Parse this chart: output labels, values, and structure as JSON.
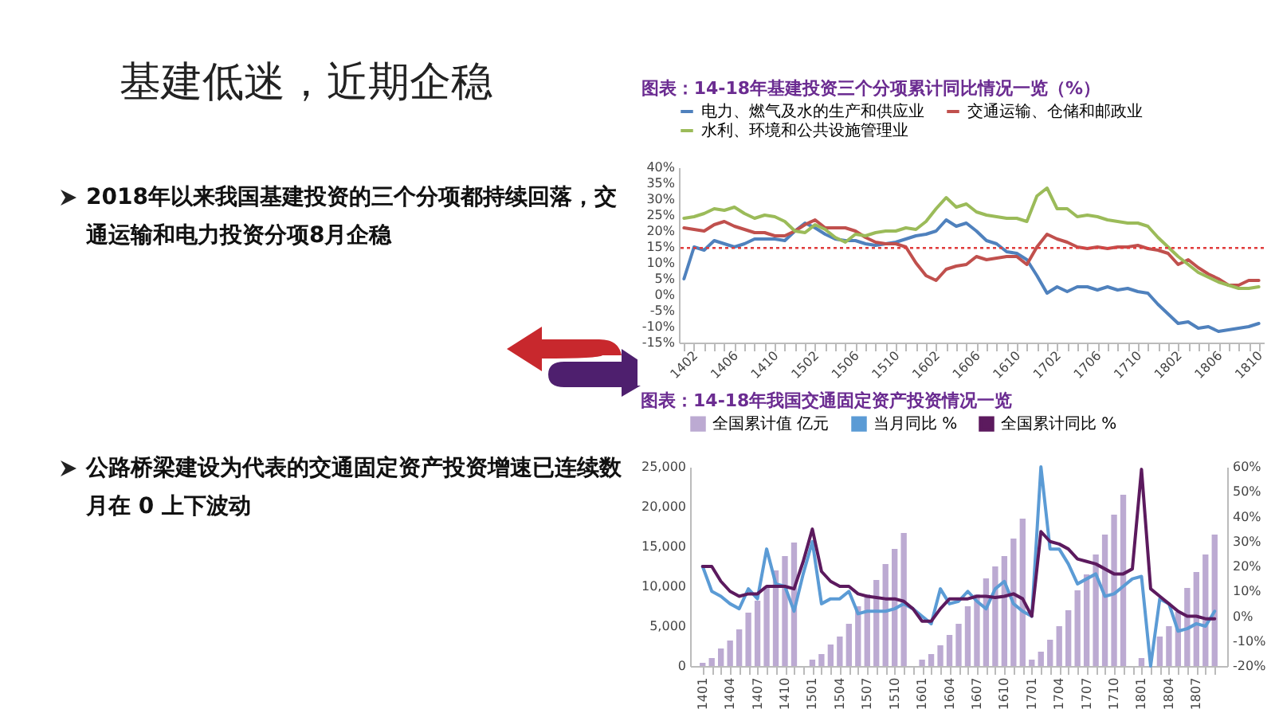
{
  "chart_data": [
    {
      "type": "other",
      "title": "基建低迷，近期企稳",
      "annotations": [
        "2018年以来我国基建投资的三个分项都持续回落，交通运输和电力投资分项8月企稳",
        "公路桥梁建设为代表的交通固定资产投资增速已连续数月在 0 上下波动"
      ]
    },
    {
      "type": "line",
      "title": "图表：14-18年基建投资三个分项累计同比情况一览（%）",
      "legend": "top",
      "categories": [
        "1402",
        null,
        null,
        null,
        "1406",
        null,
        null,
        null,
        "1410",
        null,
        null,
        null,
        "1502",
        null,
        null,
        null,
        "1506",
        null,
        null,
        null,
        "1510",
        null,
        null,
        null,
        "1602",
        null,
        null,
        null,
        "1606",
        null,
        null,
        null,
        "1610",
        null,
        null,
        null,
        "1702",
        null,
        null,
        null,
        "1706",
        null,
        null,
        null,
        "1710",
        null,
        null,
        null,
        "1802",
        null,
        null,
        null,
        "1806",
        null,
        null,
        null,
        "1810",
        null
      ],
      "ylim": [
        -15,
        40
      ],
      "yticks": [
        {
          "value": -15,
          "label": "-15%"
        },
        {
          "value": -10,
          "label": "-10%"
        },
        {
          "value": -5,
          "label": "-5%"
        },
        {
          "value": 0,
          "label": "0%"
        },
        {
          "value": 5,
          "label": "5%"
        },
        {
          "value": 10,
          "label": "10%"
        },
        {
          "value": 15,
          "label": "15%"
        },
        {
          "value": 20,
          "label": "20%"
        },
        {
          "value": 25,
          "label": "25%"
        },
        {
          "value": 30,
          "label": "30%"
        },
        {
          "value": 35,
          "label": "35%"
        },
        {
          "value": 40,
          "label": "40%"
        }
      ],
      "ref_lines": [
        {
          "axis": "y",
          "value": 14.7,
          "color": "#e03c3c",
          "line_style": "dotted"
        }
      ],
      "series": [
        {
          "name": "电力、燃气及水的生产和供应业",
          "color": "#4f81bd",
          "values": [
            5,
            15,
            14,
            17,
            16,
            15,
            16,
            17.5,
            17.5,
            17.5,
            17,
            20,
            22.5,
            21,
            19,
            17.5,
            17,
            17,
            16,
            15.5,
            16,
            16.5,
            17.5,
            18.5,
            19,
            20,
            23.5,
            21.5,
            22.5,
            20,
            17,
            16,
            13.5,
            13,
            11,
            6,
            0.5,
            2.5,
            1,
            2.5,
            2.5,
            1.5,
            2.5,
            1.5,
            2,
            1,
            0.5,
            -3,
            -6,
            -9,
            -8.5,
            -10.5,
            -10,
            -11.5,
            -11,
            -10.5,
            -10,
            -9
          ]
        },
        {
          "name": "交通运输、仓储和邮政业",
          "color": "#c0504d",
          "values": [
            21,
            20.5,
            20,
            22,
            23,
            21.5,
            20.5,
            19.5,
            19.5,
            18.5,
            18.5,
            20,
            22,
            23.5,
            21,
            21,
            21,
            20,
            18,
            16.5,
            16,
            16,
            15,
            10,
            6,
            4.5,
            8,
            9,
            9.5,
            12,
            11,
            11.5,
            12,
            12,
            9.5,
            15,
            19,
            17.5,
            16.5,
            15,
            14.5,
            15,
            14.5,
            15,
            15,
            15.5,
            14.5,
            14,
            13,
            9.5,
            11,
            8.5,
            6.5,
            5,
            3,
            3,
            4.5,
            4.5
          ]
        },
        {
          "name": "水利、环境和公共设施管理业",
          "color": "#9bbb59",
          "values": [
            24,
            24.5,
            25.5,
            27,
            26.5,
            27.5,
            25.5,
            24,
            25,
            24.5,
            23,
            20,
            19.5,
            22,
            20.5,
            18,
            16.5,
            19,
            18.5,
            19.5,
            20,
            20,
            21,
            20.5,
            23,
            27,
            30.5,
            27.5,
            28.5,
            26,
            25,
            24.5,
            24,
            24,
            23,
            31,
            33.5,
            27,
            27,
            24.5,
            25,
            24.5,
            23.5,
            23,
            22.5,
            22.5,
            21.5,
            18,
            15,
            12,
            9.5,
            7,
            5.5,
            4,
            3,
            2,
            2,
            2.5
          ]
        }
      ]
    },
    {
      "type": "bar",
      "title": "图表：14-18年我国交通固定资产投资情况一览",
      "legend": "top",
      "categories": [
        "1401",
        null,
        null,
        "1404",
        null,
        null,
        "1407",
        null,
        null,
        "1410",
        null,
        null,
        "1501",
        null,
        null,
        "1504",
        null,
        null,
        "1507",
        null,
        null,
        "1510",
        null,
        null,
        "1601",
        null,
        null,
        "1604",
        null,
        null,
        "1607",
        null,
        null,
        "1610",
        null,
        null,
        "1701",
        null,
        null,
        "1704",
        null,
        null,
        "1707",
        null,
        null,
        "1710",
        null,
        null,
        "1801",
        null,
        null,
        "1804",
        null,
        null,
        "1807",
        null,
        null
      ],
      "ylim": [
        0,
        25000
      ],
      "yticks": [
        0,
        {
          "value": 5000,
          "label": "5,000"
        },
        {
          "value": 10000,
          "label": "10,000"
        },
        {
          "value": 15000,
          "label": "15,000"
        },
        {
          "value": 20000,
          "label": "20,000"
        },
        {
          "value": 25000,
          "label": "25,000"
        }
      ],
      "y2lim": [
        -20,
        60
      ],
      "y2ticks": [
        {
          "value": -20,
          "label": "-20%"
        },
        {
          "value": -10,
          "label": "-10%"
        },
        {
          "value": 0,
          "label": "0%"
        },
        {
          "value": 10,
          "label": "10%"
        },
        {
          "value": 20,
          "label": "20%"
        },
        {
          "value": 30,
          "label": "30%"
        },
        {
          "value": 40,
          "label": "40%"
        },
        {
          "value": 50,
          "label": "50%"
        },
        {
          "value": 60,
          "label": "60%"
        }
      ],
      "series": [
        {
          "name": "全国累计值 亿元",
          "type": "bar",
          "color": "#bcaad2",
          "values": [
            400,
            1000,
            2200,
            3200,
            4600,
            6700,
            8200,
            10000,
            12000,
            13800,
            15500,
            null,
            800,
            1500,
            2700,
            3700,
            5300,
            7500,
            9000,
            10800,
            12800,
            14700,
            16700,
            null,
            800,
            1500,
            2600,
            3900,
            5300,
            7500,
            9000,
            11000,
            12500,
            13800,
            16000,
            18500,
            800,
            1800,
            3300,
            5000,
            7000,
            9500,
            11500,
            14000,
            16500,
            19000,
            21500,
            null,
            1000,
            null,
            3700,
            5000,
            6800,
            9800,
            11800,
            14000,
            16500
          ]
        },
        {
          "name": "当月同比 %",
          "type": "line",
          "axis": "y2",
          "color": "#5b9bd5",
          "values": [
            20,
            10,
            8,
            5,
            3,
            11,
            7,
            27,
            13,
            12,
            2,
            17,
            30,
            5,
            7,
            7,
            10,
            1,
            2,
            2,
            2,
            3,
            5,
            3,
            0,
            -3,
            11,
            5,
            6,
            10,
            6,
            3,
            11,
            14,
            5,
            2,
            0,
            60,
            27,
            27,
            21,
            13,
            15,
            17,
            8,
            9,
            12,
            15,
            16,
            -20,
            7,
            5,
            -6,
            -5,
            -3,
            -4,
            2
          ]
        },
        {
          "name": "全国累计同比 %",
          "type": "line",
          "axis": "y2",
          "color": "#5c1a5e",
          "values": [
            20,
            20,
            14,
            10,
            8,
            9,
            9,
            12,
            12,
            12,
            11,
            22,
            35,
            18,
            14,
            12,
            12,
            9,
            8,
            7.5,
            7,
            7,
            6,
            3,
            -2,
            -2,
            3,
            7,
            7,
            7,
            8,
            8,
            7.5,
            8,
            9,
            7,
            0,
            34,
            30,
            29,
            27,
            23,
            22,
            21,
            19,
            17,
            17,
            19,
            59,
            11,
            8,
            5,
            2,
            0,
            0,
            -1,
            -1
          ]
        }
      ]
    }
  ]
}
